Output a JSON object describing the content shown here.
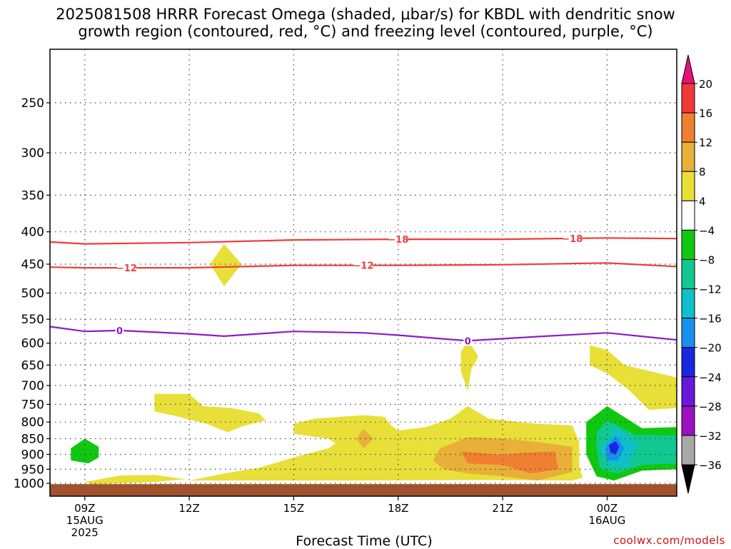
{
  "title_line1": "2025081508 HRRR Forecast Omega (shaded, μbar/s) for KBDL with dendritic snow",
  "title_line2": "growth region (contoured, red, °C) and freezing level (contoured, purple, °C)",
  "xlabel": "Forecast Time (UTC)",
  "credit": "coolwx.com/models",
  "chart_data": {
    "type": "heatmap",
    "y_axis": {
      "label": "",
      "scale": "log-pressure",
      "range_hPa": [
        1015,
        200
      ],
      "ticks": [
        250,
        300,
        350,
        400,
        450,
        500,
        550,
        600,
        650,
        700,
        750,
        800,
        850,
        900,
        950,
        1000
      ]
    },
    "x_axis": {
      "label": "Forecast Time (UTC)",
      "range_hours": [
        8,
        26
      ],
      "ticks": [
        {
          "hour": 9,
          "lines": [
            "09Z",
            "15AUG",
            "2025"
          ]
        },
        {
          "hour": 12,
          "lines": [
            "12Z"
          ]
        },
        {
          "hour": 15,
          "lines": [
            "15Z"
          ]
        },
        {
          "hour": 18,
          "lines": [
            "18Z"
          ]
        },
        {
          "hour": 21,
          "lines": [
            "21Z"
          ]
        },
        {
          "hour": 24,
          "lines": [
            "00Z",
            "16AUG"
          ]
        }
      ],
      "grid": true
    },
    "colorbar": {
      "unit": "μbar/s",
      "labels": [
        "20",
        "16",
        "12",
        "8",
        "4",
        "−4",
        "−8",
        "−12",
        "−16",
        "−20",
        "−24",
        "−28",
        "−32",
        "−36"
      ],
      "colors": [
        "#e8107a",
        "#f03838",
        "#f08030",
        "#e8b038",
        "#e8e038",
        "#ffffff",
        "#10c810",
        "#10c890",
        "#10c0c8",
        "#1890f0",
        "#1828e0",
        "#6818d8",
        "#9c10c0",
        "#a8a8a8",
        "#000000"
      ]
    },
    "contours": [
      {
        "variable": "temperature",
        "color": "#f03c3c",
        "value": -18,
        "label": "−18",
        "points": [
          [
            8,
            415
          ],
          [
            9,
            418
          ],
          [
            12,
            416
          ],
          [
            15,
            412
          ],
          [
            18,
            411
          ],
          [
            21,
            411
          ],
          [
            24,
            409
          ],
          [
            26,
            410
          ]
        ],
        "label_hours": [
          18,
          23
        ]
      },
      {
        "variable": "temperature",
        "color": "#f03c3c",
        "value": -12,
        "label": "−12",
        "points": [
          [
            8,
            455
          ],
          [
            9,
            456
          ],
          [
            12,
            456
          ],
          [
            15,
            452
          ],
          [
            18,
            452
          ],
          [
            21,
            451
          ],
          [
            24,
            448
          ],
          [
            26,
            454
          ]
        ],
        "label_hours": [
          10.2,
          17
        ]
      },
      {
        "variable": "freezing level",
        "color": "#8c1cc8",
        "value": 0,
        "label": "0",
        "points": [
          [
            8,
            565
          ],
          [
            9,
            575
          ],
          [
            10,
            573
          ],
          [
            12,
            580
          ],
          [
            13,
            585
          ],
          [
            15,
            575
          ],
          [
            17,
            578
          ],
          [
            18,
            583
          ],
          [
            20,
            595
          ],
          [
            22,
            586
          ],
          [
            24,
            578
          ],
          [
            26,
            593
          ]
        ],
        "label_hours": [
          10,
          20
        ]
      }
    ],
    "shaded_regions": [
      {
        "value_class": "4 to 8",
        "color": "#e8e038",
        "points": [
          [
            13,
            418
          ],
          [
            13.5,
            450
          ],
          [
            13,
            488
          ],
          [
            12.6,
            450
          ]
        ]
      },
      {
        "value_class": "4 to 8",
        "color": "#e8e038",
        "points": [
          [
            11,
            722
          ],
          [
            12,
            722
          ],
          [
            12.4,
            755
          ],
          [
            13.2,
            760
          ],
          [
            14,
            775
          ],
          [
            14.2,
            795
          ],
          [
            13.6,
            810
          ],
          [
            13.1,
            830
          ],
          [
            12.5,
            805
          ],
          [
            11.5,
            780
          ],
          [
            11,
            770
          ]
        ]
      },
      {
        "value_class": "4 to 8",
        "color": "#e8e038",
        "points": [
          [
            9,
            995
          ],
          [
            10,
            972
          ],
          [
            11,
            970
          ],
          [
            11.9,
            985
          ],
          [
            11,
            995
          ],
          [
            10,
            1000
          ],
          [
            9.2,
            1003
          ]
        ]
      },
      {
        "value_class": "4 to 8",
        "color": "#e8e038",
        "points": [
          [
            12,
            990
          ],
          [
            13,
            965
          ],
          [
            14,
            945
          ],
          [
            15,
            910
          ],
          [
            16,
            880
          ],
          [
            16.2,
            865
          ],
          [
            16,
            850
          ],
          [
            15,
            835
          ],
          [
            15,
            805
          ],
          [
            15.6,
            790
          ],
          [
            17,
            780
          ],
          [
            17.6,
            785
          ],
          [
            17.8,
            810
          ],
          [
            18,
            825
          ],
          [
            18.8,
            815
          ],
          [
            19.5,
            790
          ],
          [
            20,
            755
          ],
          [
            20.6,
            790
          ],
          [
            21.5,
            800
          ],
          [
            22,
            805
          ],
          [
            23,
            810
          ],
          [
            23.05,
            822
          ],
          [
            23.2,
            860
          ],
          [
            23.2,
            940
          ],
          [
            23.3,
            980
          ],
          [
            23,
            990
          ],
          [
            20,
            988
          ],
          [
            17,
            990
          ],
          [
            14,
            990
          ]
        ]
      },
      {
        "value_class": "4 to 8",
        "color": "#e8e038",
        "points": [
          [
            20,
            592
          ],
          [
            20.3,
            630
          ],
          [
            20.1,
            660
          ],
          [
            20,
            715
          ],
          [
            19.8,
            665
          ],
          [
            19.8,
            620
          ]
        ]
      },
      {
        "value_class": "4 to 8",
        "color": "#e8e038",
        "points": [
          [
            23.5,
            605
          ],
          [
            24,
            615
          ],
          [
            24.5,
            650
          ],
          [
            26,
            680
          ],
          [
            26,
            760
          ],
          [
            25.2,
            765
          ],
          [
            24.6,
            710
          ],
          [
            24,
            670
          ],
          [
            23.5,
            650
          ]
        ]
      },
      {
        "value_class": "8 to 12",
        "color": "#e8b038",
        "points": [
          [
            17,
            820
          ],
          [
            17.3,
            850
          ],
          [
            17,
            880
          ],
          [
            16.8,
            850
          ]
        ]
      },
      {
        "value_class": "8 to 12",
        "color": "#e8b038",
        "points": [
          [
            19.2,
            880
          ],
          [
            20,
            845
          ],
          [
            21,
            850
          ],
          [
            22,
            860
          ],
          [
            23,
            875
          ],
          [
            23,
            960
          ],
          [
            22,
            990
          ],
          [
            21,
            975
          ],
          [
            20,
            965
          ],
          [
            19.3,
            950
          ],
          [
            19,
            920
          ]
        ]
      },
      {
        "value_class": "12 to 16",
        "color": "#f08030",
        "points": [
          [
            19.8,
            890
          ],
          [
            21,
            902
          ],
          [
            21.5,
            895
          ],
          [
            22.5,
            890
          ],
          [
            22.6,
            950
          ],
          [
            21.8,
            965
          ],
          [
            21,
            935
          ],
          [
            20,
            930
          ]
        ]
      },
      {
        "value_class": "-4 to -8",
        "color": "#10c810",
        "points": [
          [
            8.6,
            880
          ],
          [
            9,
            850
          ],
          [
            9.4,
            875
          ],
          [
            9.4,
            910
          ],
          [
            9.1,
            930
          ],
          [
            8.6,
            920
          ]
        ]
      },
      {
        "value_class": "-4 to -8",
        "color": "#10c810",
        "points": [
          [
            23.4,
            800
          ],
          [
            24,
            755
          ],
          [
            25,
            818
          ],
          [
            26,
            815
          ],
          [
            26,
            950
          ],
          [
            25,
            955
          ],
          [
            24.2,
            990
          ],
          [
            23.7,
            975
          ],
          [
            23.4,
            900
          ]
        ]
      },
      {
        "value_class": "-8 to -12",
        "color": "#10c890",
        "points": [
          [
            23.7,
            830
          ],
          [
            24,
            795
          ],
          [
            24.8,
            838
          ],
          [
            26,
            840
          ],
          [
            26,
            930
          ],
          [
            25,
            935
          ],
          [
            24.3,
            965
          ],
          [
            23.8,
            950
          ],
          [
            23.7,
            880
          ]
        ]
      },
      {
        "value_class": "-12 to -16",
        "color": "#10c0c8",
        "points": [
          [
            23.8,
            880
          ],
          [
            24.3,
            815
          ],
          [
            24.9,
            870
          ],
          [
            24.6,
            940
          ],
          [
            24.1,
            940
          ]
        ]
      },
      {
        "value_class": "-16 to -20",
        "color": "#1890f0",
        "points": [
          [
            23.95,
            880
          ],
          [
            24.25,
            840
          ],
          [
            24.5,
            880
          ],
          [
            24.3,
            920
          ],
          [
            24,
            920
          ]
        ]
      },
      {
        "value_class": "-20 to -24",
        "color": "#1828e0",
        "points": [
          [
            24.05,
            870
          ],
          [
            24.25,
            858
          ],
          [
            24.35,
            875
          ],
          [
            24.25,
            900
          ],
          [
            24.1,
            895
          ]
        ]
      }
    ],
    "terrain_band": {
      "color": "#a0522d",
      "top_hPa": 1003
    }
  }
}
